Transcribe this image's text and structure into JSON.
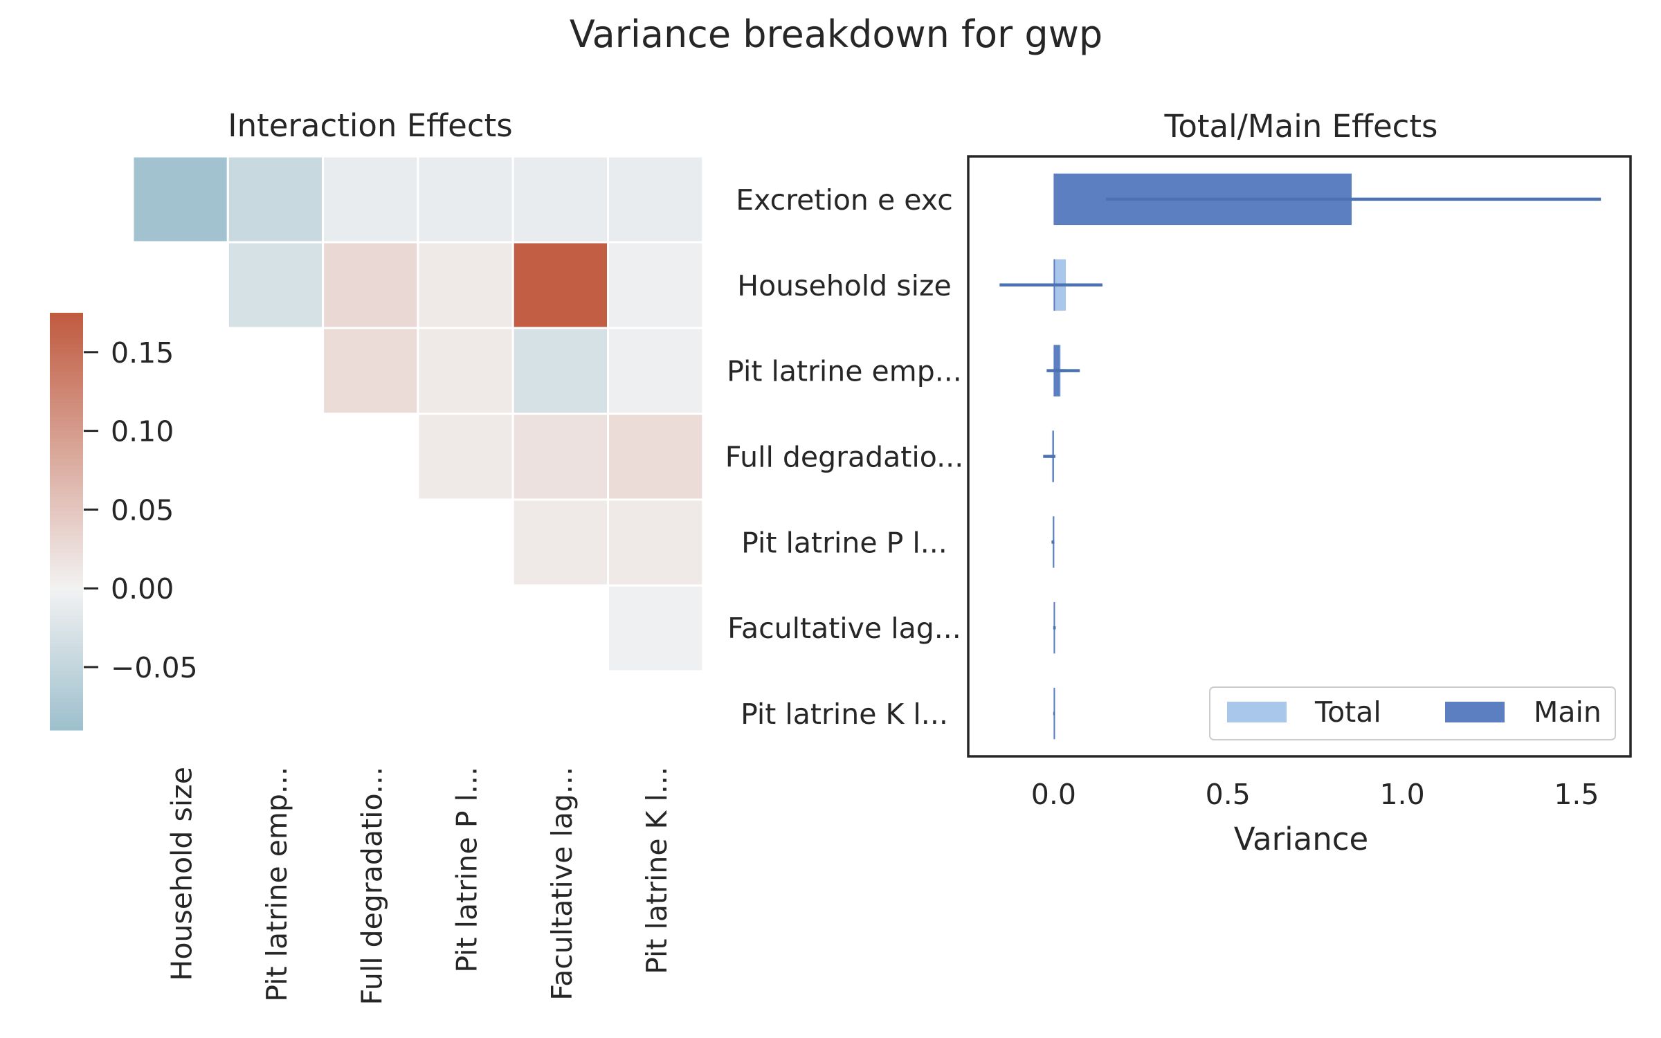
{
  "title": "Variance breakdown for gwp",
  "colors": {
    "negative": "#9dbfcd",
    "neutral": "#f2f2f2",
    "positive": "#c05a3f",
    "total_bar": "#a9c7ea",
    "main_bar": "#5b7fc1",
    "errorbar": "#4c72b0",
    "frame": "#262626"
  },
  "chart_data": [
    {
      "type": "heatmap",
      "title": "Interaction Effects",
      "row_labels": [
        "Excretion e exc",
        "Household size",
        "Pit latrine emp...",
        "Full degradatio...",
        "Pit latrine P l...",
        "Facultative lag..."
      ],
      "col_labels": [
        "Household size",
        "Pit latrine emp...",
        "Full degradatio...",
        "Pit latrine P l...",
        "Facultative lag...",
        "Pit latrine K l..."
      ],
      "matrix": [
        [
          -0.085,
          -0.045,
          -0.01,
          -0.01,
          -0.01,
          -0.01
        ],
        [
          null,
          -0.03,
          0.03,
          0.01,
          0.17,
          -0.005
        ],
        [
          null,
          null,
          0.025,
          0.01,
          -0.03,
          -0.005
        ],
        [
          null,
          null,
          null,
          0.01,
          0.02,
          0.025
        ],
        [
          null,
          null,
          null,
          null,
          0.01,
          0.01
        ],
        [
          null,
          null,
          null,
          null,
          null,
          -0.003
        ]
      ],
      "colorbar": {
        "range": [
          -0.09,
          0.175
        ],
        "ticks": [
          -0.05,
          0.0,
          0.05,
          0.1,
          0.15
        ],
        "tick_labels": [
          "−0.05",
          "0.00",
          "0.05",
          "0.10",
          "0.15"
        ]
      }
    },
    {
      "type": "bar",
      "orientation": "horizontal",
      "title": "Total/Main Effects",
      "xlabel": "Variance",
      "categories": [
        "Excretion e exc",
        "Household size",
        "Pit latrine emp...",
        "Full degradatio...",
        "Pit latrine P l...",
        "Facultative lag...",
        "Pit latrine K l..."
      ],
      "series": [
        {
          "name": "Total",
          "values": [
            0.0,
            0.035,
            0.02,
            -0.005,
            -0.003,
            0.003,
            0.002
          ],
          "error_low": [
            0.0,
            -0.155,
            -0.02,
            -0.03,
            -0.005,
            -0.001,
            -0.001
          ],
          "error_high": [
            0.0,
            0.14,
            0.075,
            0.005,
            0.002,
            0.006,
            0.003
          ]
        },
        {
          "name": "Main",
          "values": [
            0.855,
            0.002,
            0.018,
            -0.003,
            -0.002,
            0.002,
            0.001
          ],
          "error_low": [
            0.15,
            -0.005,
            0.0,
            -0.008,
            -0.006,
            -0.001,
            -0.001
          ],
          "error_high": [
            1.57,
            0.005,
            0.035,
            0.002,
            0.002,
            0.004,
            0.002
          ]
        }
      ],
      "xlim": [
        -0.245,
        1.655
      ],
      "xticks": [
        0.0,
        0.5,
        1.0,
        1.5
      ],
      "xtick_labels": [
        "0.0",
        "0.5",
        "1.0",
        "1.5"
      ],
      "legend": {
        "placement": "lower right",
        "labels": [
          "Total",
          "Main"
        ]
      }
    }
  ]
}
